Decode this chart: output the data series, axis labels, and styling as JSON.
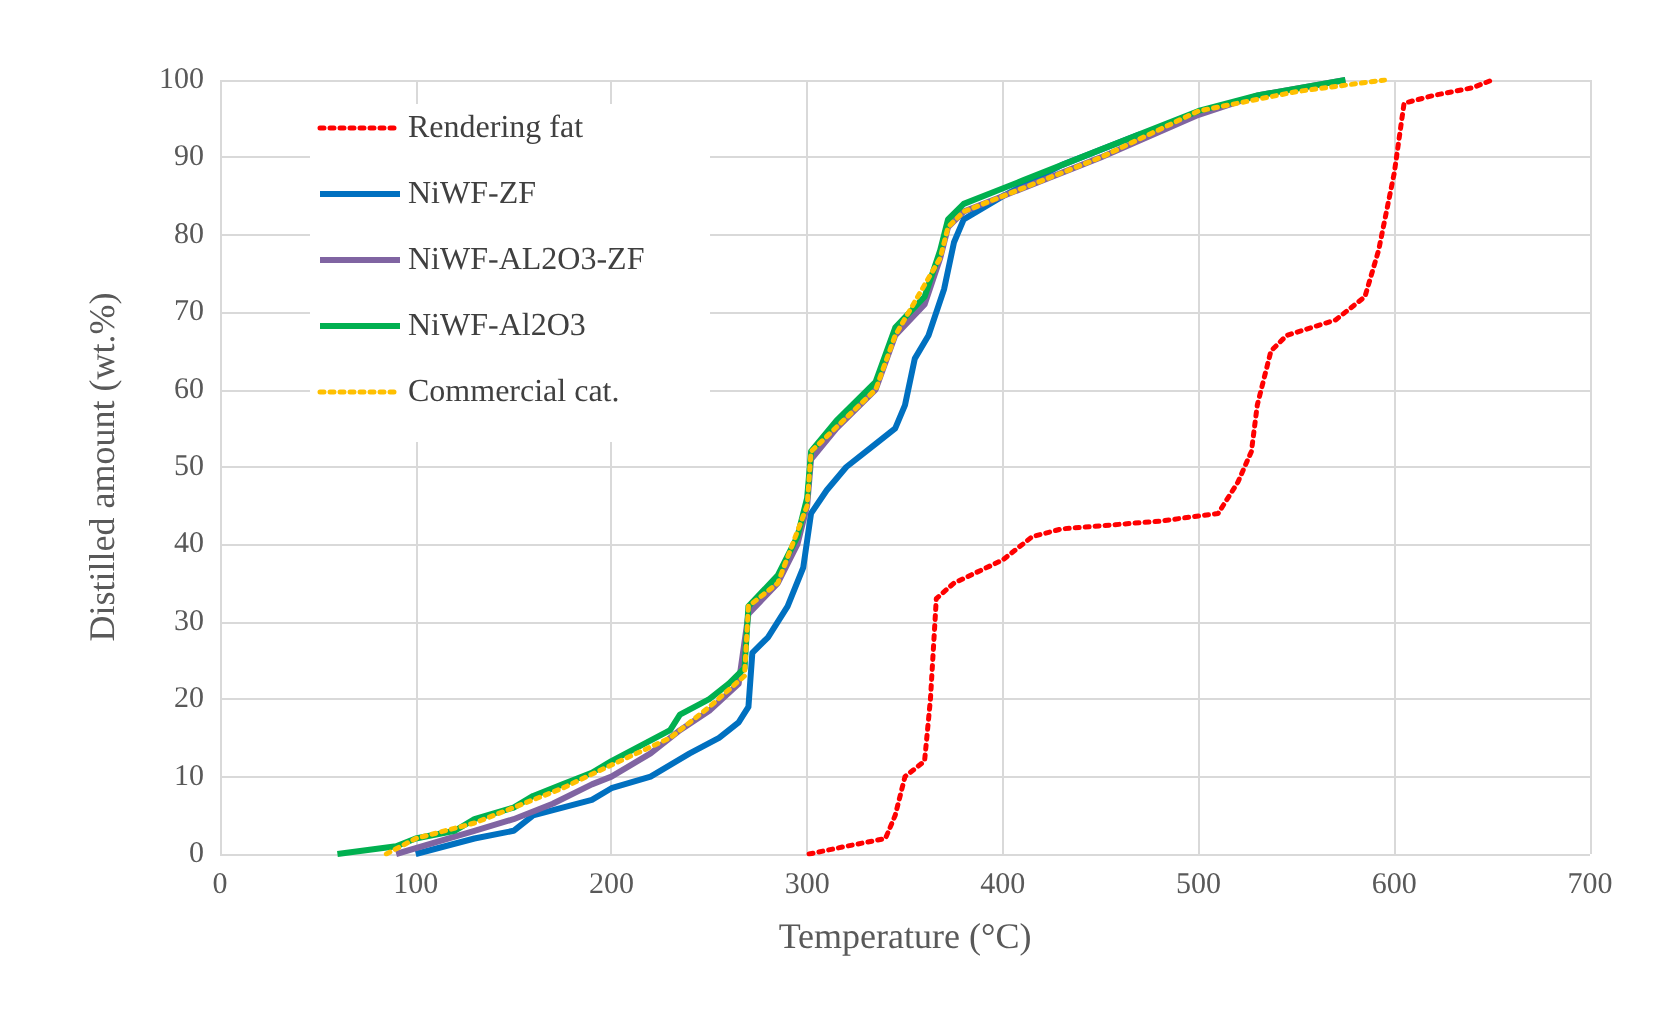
{
  "chart_data": {
    "type": "line",
    "xlabel": "Temperature (°C)",
    "ylabel": "Distilled amount (wt.%)",
    "xlim": [
      0,
      700
    ],
    "xticks": [
      0,
      100,
      200,
      300,
      400,
      500,
      600,
      700
    ],
    "ylim": [
      0,
      100
    ],
    "yticks": [
      0,
      10,
      20,
      30,
      40,
      50,
      60,
      70,
      80,
      90,
      100
    ],
    "grid": true,
    "legend": "top left",
    "marker": "none",
    "series": [
      {
        "name": "Rendering fat",
        "color": "#ff0000",
        "line_style": "dotted",
        "x": [
          301,
          320,
          340,
          345,
          350,
          360,
          363,
          366,
          375,
          400,
          415,
          430,
          480,
          510,
          520,
          527,
          530,
          537,
          545,
          570,
          585,
          592,
          600,
          605,
          620,
          640,
          650
        ],
        "values": [
          0,
          1,
          2,
          5,
          10,
          12,
          20,
          33,
          35,
          38,
          41,
          42,
          43,
          44,
          48,
          52,
          58,
          65,
          67,
          69,
          72,
          78,
          88,
          97,
          98,
          99,
          100
        ]
      },
      {
        "name": "NiWF-ZF",
        "color": "#0070c0",
        "line_style": "solid",
        "x": [
          100,
          130,
          150,
          160,
          175,
          190,
          200,
          220,
          240,
          255,
          265,
          270,
          272,
          280,
          290,
          298,
          302,
          310,
          320,
          335,
          345,
          350,
          355,
          362,
          370,
          375,
          380,
          400,
          430,
          470
        ],
        "values": [
          0,
          2,
          3,
          5,
          6,
          7,
          8.5,
          10,
          13,
          15,
          17,
          19,
          26,
          28,
          32,
          37,
          44,
          47,
          50,
          53,
          55,
          58,
          64,
          67,
          73,
          79,
          82,
          85,
          89,
          93
        ]
      },
      {
        "name": "NiWF-AL2O3-ZF",
        "color": "#8064a2",
        "line_style": "solid",
        "x": [
          90,
          110,
          130,
          150,
          170,
          190,
          200,
          220,
          235,
          250,
          265,
          270,
          285,
          295,
          300,
          302,
          315,
          335,
          345,
          360,
          368,
          372,
          380,
          410,
          450,
          500,
          530,
          575
        ],
        "values": [
          0,
          1.5,
          3,
          4.5,
          6.5,
          9,
          10,
          13,
          16,
          18.5,
          22,
          31,
          35,
          40,
          45,
          51,
          55,
          60,
          67,
          71,
          77,
          81,
          83,
          86,
          90,
          95.5,
          98,
          100
        ]
      },
      {
        "name": "NiWF-Al2O3",
        "color": "#00b050",
        "line_style": "solid",
        "x": [
          60,
          90,
          100,
          120,
          130,
          150,
          160,
          175,
          190,
          200,
          215,
          230,
          235,
          250,
          260,
          268,
          270,
          285,
          295,
          300,
          302,
          315,
          335,
          345,
          360,
          368,
          372,
          380,
          410,
          450,
          500,
          530,
          575
        ],
        "values": [
          0,
          1,
          2,
          3,
          4.5,
          6,
          7.5,
          9,
          10.5,
          12,
          14,
          16,
          18,
          20,
          22,
          24,
          32,
          36,
          41,
          46,
          52,
          56,
          61,
          68,
          72,
          78,
          82,
          84,
          87,
          91,
          96,
          98,
          100
        ]
      },
      {
        "name": "Commercial cat.",
        "color": "#ffc000",
        "line_style": "dotted",
        "x": [
          85,
          100,
          130,
          150,
          175,
          200,
          230,
          250,
          268,
          270,
          285,
          300,
          302,
          335,
          345,
          368,
          372,
          380,
          410,
          450,
          500,
          550,
          595
        ],
        "values": [
          0,
          2,
          4,
          6,
          8.5,
          11.5,
          15,
          19,
          23,
          32,
          35,
          45,
          52,
          60,
          67,
          77,
          81,
          83,
          86,
          90,
          96,
          98.5,
          100
        ]
      }
    ]
  }
}
